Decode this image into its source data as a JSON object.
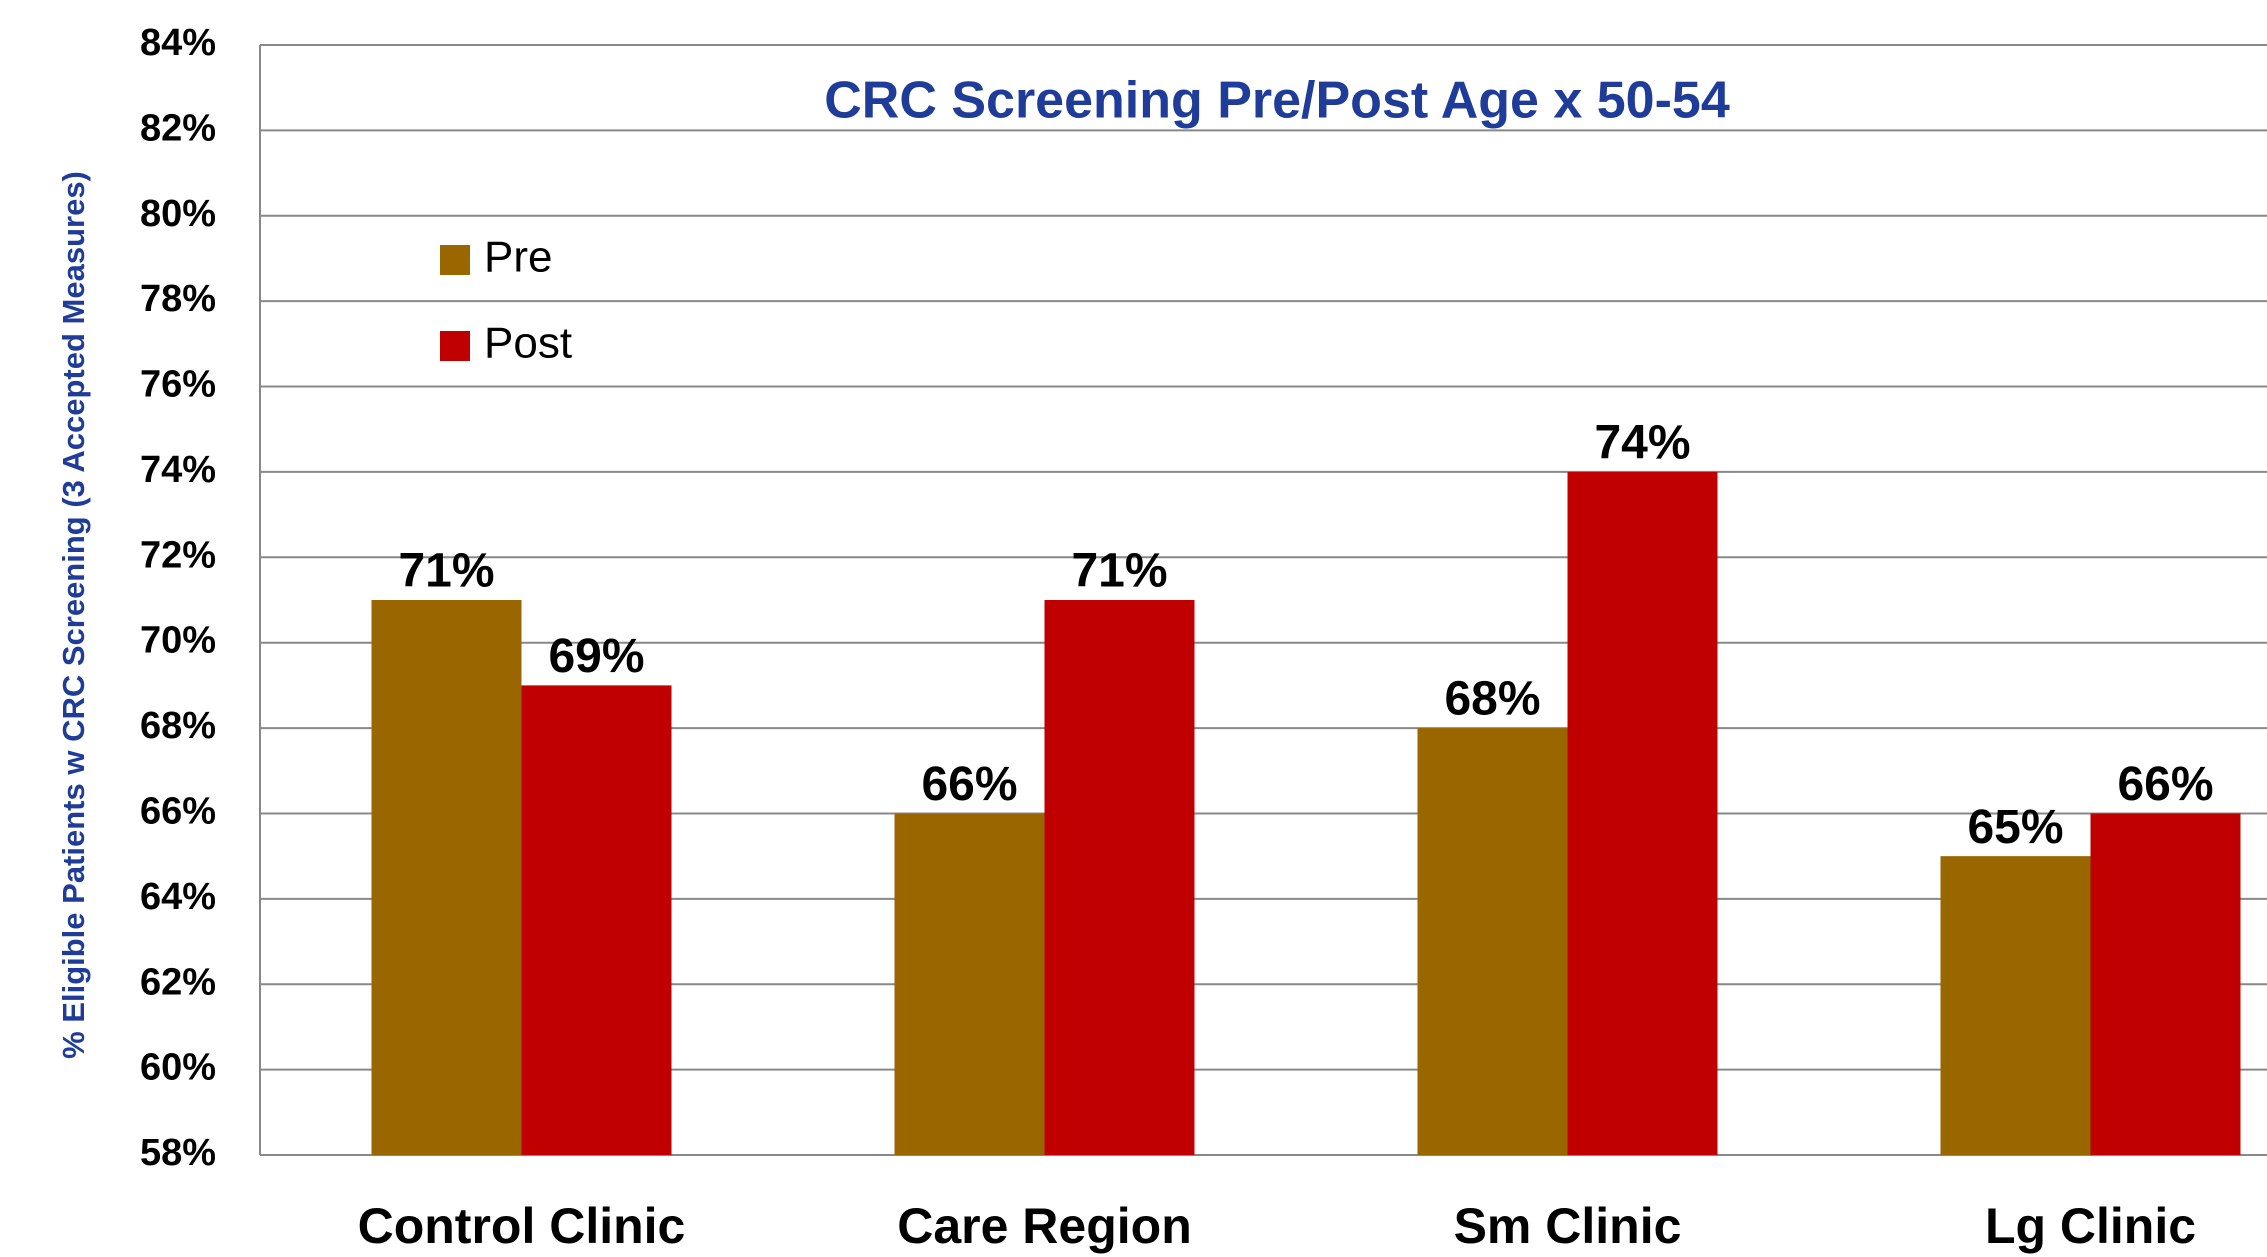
{
  "chart_data": {
    "type": "bar",
    "title": "CRC Screening Pre/Post Age x 50-54",
    "y_label": "% Eligible Patients w CRC Screening (3 Accepted Measures)",
    "categories": [
      "Control Clinic",
      "Care Region",
      "Sm Clinic",
      "Lg Clinic"
    ],
    "series": [
      {
        "name": "Pre",
        "color": "#996600",
        "values": [
          71,
          66,
          68,
          65
        ],
        "value_labels": [
          "71%",
          "66%",
          "68%",
          "65%"
        ]
      },
      {
        "name": "Post",
        "color": "#c00000",
        "values": [
          69,
          71,
          74,
          66
        ],
        "value_labels": [
          "69%",
          "71%",
          "74%",
          "66%"
        ]
      }
    ],
    "ylim": [
      58,
      84
    ],
    "yticks": [
      {
        "value": 58,
        "label": "58%"
      },
      {
        "value": 60,
        "label": "60%"
      },
      {
        "value": 62,
        "label": "62%"
      },
      {
        "value": 64,
        "label": "64%"
      },
      {
        "value": 66,
        "label": "66%"
      },
      {
        "value": 68,
        "label": "68%"
      },
      {
        "value": 70,
        "label": "70%"
      },
      {
        "value": 72,
        "label": "72%"
      },
      {
        "value": 74,
        "label": "74%"
      },
      {
        "value": 76,
        "label": "76%"
      },
      {
        "value": 78,
        "label": "78%"
      },
      {
        "value": 80,
        "label": "80%"
      },
      {
        "value": 82,
        "label": "82%"
      },
      {
        "value": 84,
        "label": "84%"
      }
    ],
    "grid": true,
    "legend": "upper left"
  }
}
